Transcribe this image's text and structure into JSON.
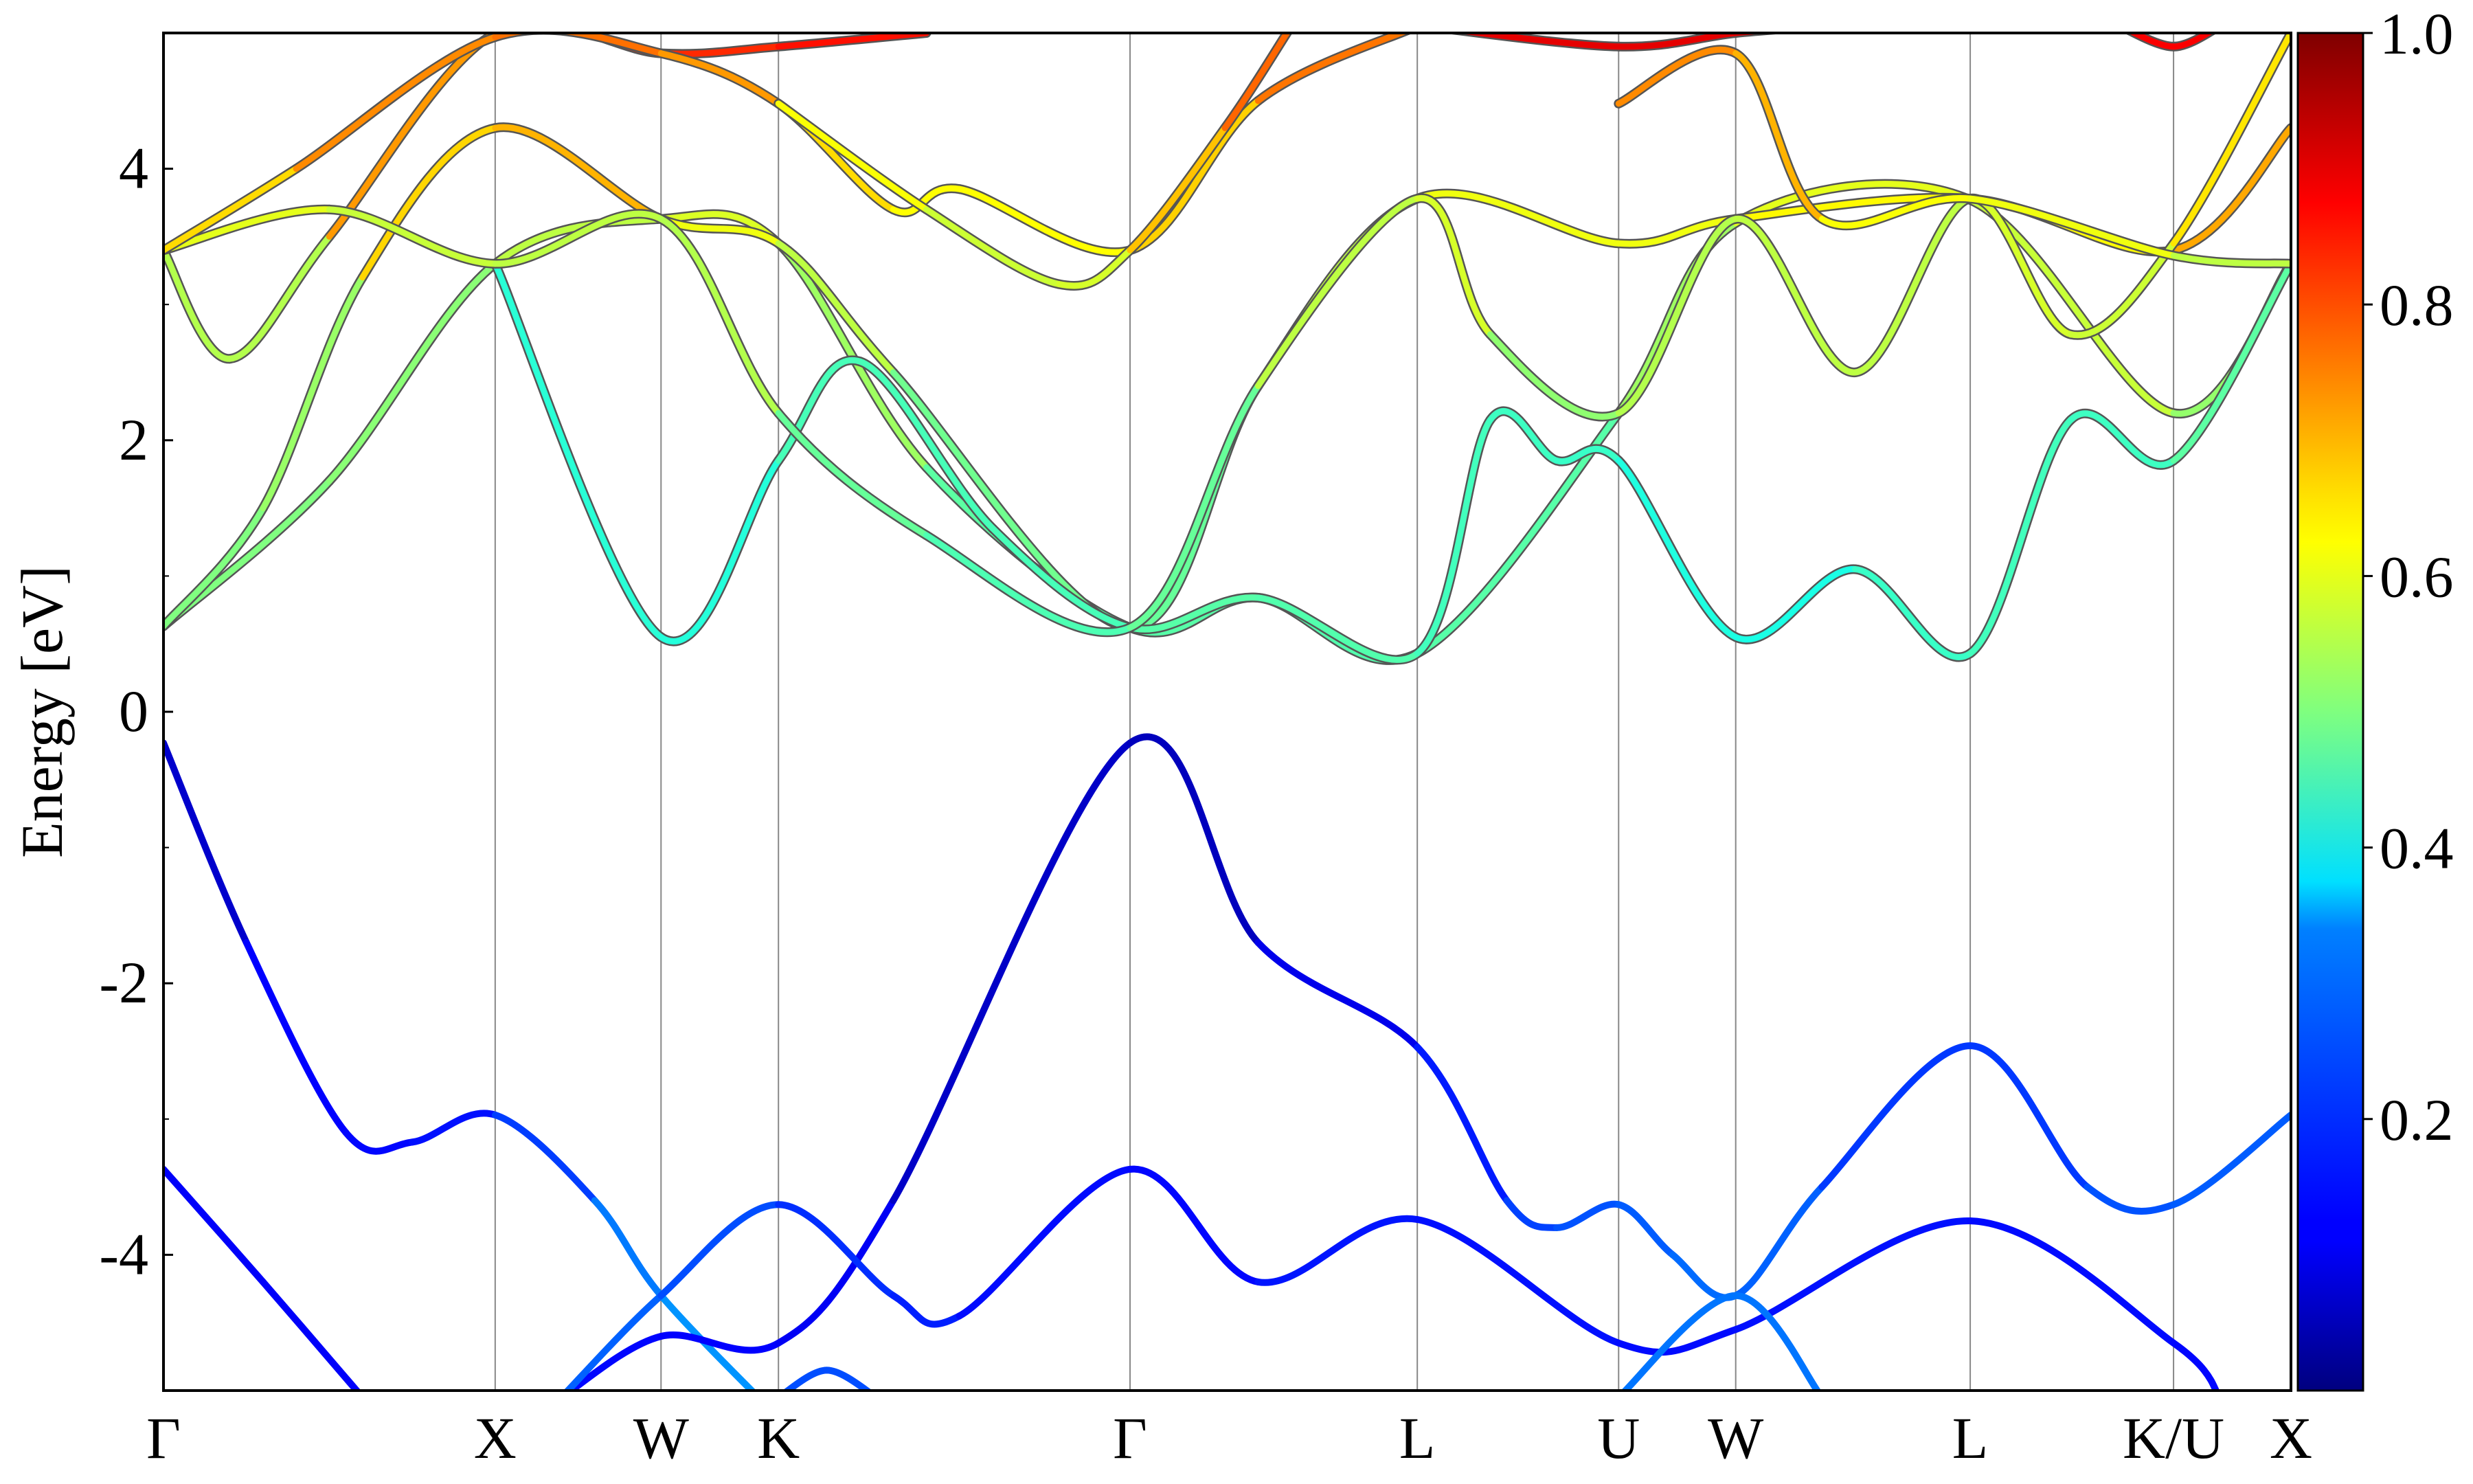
{
  "chart_data": {
    "type": "line",
    "title": "",
    "xlabel": "",
    "ylabel": "Energy [eV]",
    "ylim": [
      -5,
      5
    ],
    "yticks": [
      4,
      2,
      0,
      -2,
      -4
    ],
    "ytick_labels": [
      "4",
      "2",
      "0",
      "-2",
      "-4"
    ],
    "grid": "vertical lines at high-symmetry points",
    "legend": "none",
    "high_symmetry_points": [
      {
        "label": "Γ",
        "k": 0.0
      },
      {
        "label": "X",
        "k": 1.0
      },
      {
        "label": "W",
        "k": 1.5
      },
      {
        "label": "K",
        "k": 1.854
      },
      {
        "label": "Γ",
        "k": 2.914
      },
      {
        "label": "L",
        "k": 3.78
      },
      {
        "label": "U",
        "k": 4.387
      },
      {
        "label": "W",
        "k": 4.74
      },
      {
        "label": "L",
        "k": 5.447
      },
      {
        "label": "K/U",
        "k": 6.06
      },
      {
        "label": "X",
        "k": 6.414
      }
    ],
    "colorbar": {
      "colormap": "jet",
      "range": [
        0,
        1
      ],
      "ticks": [
        1.0,
        0.8,
        0.6,
        0.4,
        0.2
      ],
      "tick_labels": [
        "1.0",
        "0.8",
        "0.6",
        "0.4",
        "0.2"
      ]
    },
    "series": [
      {
        "points": [
          [
            0,
            -0.23
          ],
          [
            0.25,
            -1.7
          ],
          [
            0.55,
            -3.1
          ],
          [
            0.75,
            -3.17
          ],
          [
            1.0,
            -2.97
          ],
          [
            1.3,
            -3.6
          ],
          [
            1.5,
            -4.3
          ],
          [
            1.854,
            -5.2
          ]
        ],
        "weight": [
          0.03,
          0.12,
          0.13,
          0.13,
          0.15,
          0.22,
          0.27,
          0.27
        ]
      },
      {
        "points": [
          [
            0,
            -3.37
          ],
          [
            0.3,
            -4.2
          ],
          [
            0.6,
            -5.05
          ]
        ],
        "weight": [
          0.12,
          0.12,
          0.12
        ]
      },
      {
        "points": [
          [
            1.2,
            -5.05
          ],
          [
            1.5,
            -4.6
          ],
          [
            1.854,
            -4.65
          ],
          [
            2.2,
            -3.6
          ],
          [
            2.914,
            -0.23
          ],
          [
            3.3,
            -1.7
          ],
          [
            3.78,
            -2.47
          ],
          [
            4.05,
            -3.6
          ],
          [
            4.2,
            -3.8
          ],
          [
            4.387,
            -3.63
          ],
          [
            4.55,
            -4.0
          ],
          [
            4.74,
            -4.3
          ],
          [
            5.0,
            -3.5
          ],
          [
            5.447,
            -2.46
          ],
          [
            5.8,
            -3.5
          ],
          [
            6.06,
            -3.63
          ],
          [
            6.414,
            -2.97
          ]
        ],
        "weight": [
          0.13,
          0.13,
          0.12,
          0.11,
          0.03,
          0.09,
          0.12,
          0.18,
          0.2,
          0.21,
          0.22,
          0.24,
          0.2,
          0.16,
          0.2,
          0.21,
          0.22
        ]
      },
      {
        "points": [
          [
            1.2,
            -5.05
          ],
          [
            1.5,
            -4.3
          ],
          [
            1.854,
            -3.63
          ],
          [
            2.2,
            -4.3
          ],
          [
            2.4,
            -4.45
          ],
          [
            2.914,
            -3.37
          ],
          [
            3.3,
            -4.2
          ],
          [
            3.78,
            -3.74
          ],
          [
            4.387,
            -4.65
          ],
          [
            4.74,
            -4.55
          ],
          [
            5.447,
            -3.75
          ],
          [
            6.06,
            -4.65
          ],
          [
            6.2,
            -5.05
          ]
        ],
        "weight": [
          0.22,
          0.22,
          0.18,
          0.16,
          0.15,
          0.12,
          0.14,
          0.15,
          0.13,
          0.14,
          0.14,
          0.13,
          0.13
        ]
      },
      {
        "points": [
          [
            1.65,
            -5.05
          ],
          [
            1.854,
            -5.2
          ]
        ],
        "weight": [
          0.25,
          0.25
        ]
      },
      {
        "points": [
          [
            1.854,
            -5.05
          ],
          [
            2.0,
            -4.85
          ],
          [
            2.15,
            -5.05
          ]
        ],
        "weight": [
          0.2,
          0.2,
          0.2
        ]
      },
      {
        "points": [
          [
            4.387,
            -5.05
          ],
          [
            4.74,
            -4.3
          ],
          [
            5.0,
            -5.05
          ]
        ],
        "weight": [
          0.24,
          0.24,
          0.24
        ]
      },
      {
        "points": [
          [
            0,
            0.63
          ],
          [
            0.5,
            1.7
          ],
          [
            1.0,
            3.3
          ],
          [
            1.5,
            3.63
          ],
          [
            1.854,
            3.45
          ],
          [
            2.3,
            1.8
          ],
          [
            2.914,
            0.62
          ],
          [
            3.3,
            0.84
          ],
          [
            3.78,
            0.43
          ],
          [
            4.387,
            2.2
          ],
          [
            4.74,
            3.6
          ],
          [
            5.447,
            3.77
          ],
          [
            6.06,
            2.2
          ],
          [
            6.414,
            3.3
          ]
        ],
        "weight": [
          0.5,
          0.5,
          0.52,
          0.6,
          0.58,
          0.48,
          0.45,
          0.47,
          0.44,
          0.48,
          0.58,
          0.62,
          0.52,
          0.52
        ]
      },
      {
        "points": [
          [
            0,
            0.63
          ],
          [
            0.3,
            1.5
          ],
          [
            0.6,
            3.2
          ],
          [
            1.0,
            4.3
          ],
          [
            1.5,
            3.63
          ],
          [
            1.854,
            3.45
          ],
          [
            2.2,
            2.5
          ],
          [
            2.914,
            0.62
          ],
          [
            3.3,
            2.4
          ],
          [
            3.78,
            3.78
          ],
          [
            4.387,
            3.45
          ],
          [
            4.74,
            3.63
          ],
          [
            5.447,
            3.78
          ],
          [
            6.06,
            3.4
          ],
          [
            6.414,
            4.3
          ]
        ],
        "weight": [
          0.5,
          0.5,
          0.55,
          0.78,
          0.62,
          0.6,
          0.52,
          0.45,
          0.5,
          0.62,
          0.6,
          0.62,
          0.64,
          0.62,
          0.8
        ]
      },
      {
        "points": [
          [
            1.0,
            3.3
          ],
          [
            1.5,
            0.55
          ],
          [
            1.854,
            1.85
          ],
          [
            2.1,
            2.58
          ],
          [
            2.5,
            1.35
          ],
          [
            2.914,
            0.62
          ],
          [
            3.3,
            0.84
          ],
          [
            3.78,
            0.43
          ],
          [
            4.0,
            2.15
          ],
          [
            4.2,
            1.85
          ],
          [
            4.387,
            1.85
          ],
          [
            4.74,
            0.55
          ],
          [
            5.1,
            1.05
          ],
          [
            5.447,
            0.43
          ],
          [
            5.75,
            2.15
          ],
          [
            6.06,
            1.85
          ],
          [
            6.414,
            3.3
          ]
        ],
        "weight": [
          0.45,
          0.38,
          0.44,
          0.45,
          0.44,
          0.45,
          0.47,
          0.44,
          0.44,
          0.43,
          0.43,
          0.38,
          0.42,
          0.44,
          0.44,
          0.43,
          0.5
        ]
      },
      {
        "points": [
          [
            0,
            3.4
          ],
          [
            0.2,
            2.6
          ],
          [
            0.5,
            3.5
          ],
          [
            1.0,
            5.0
          ],
          [
            1.5,
            4.85
          ],
          [
            1.854,
            4.9
          ],
          [
            2.3,
            5.0
          ]
        ],
        "weight": [
          0.6,
          0.5,
          0.6,
          0.85,
          0.82,
          0.85,
          0.87
        ]
      },
      {
        "points": [
          [
            0,
            3.4
          ],
          [
            0.5,
            3.7
          ],
          [
            1.0,
            3.3
          ],
          [
            1.5,
            3.63
          ],
          [
            1.854,
            2.2
          ],
          [
            2.3,
            1.3
          ],
          [
            2.914,
            0.62
          ],
          [
            3.3,
            2.4
          ],
          [
            3.78,
            3.78
          ],
          [
            4.0,
            2.78
          ],
          [
            4.387,
            2.2
          ],
          [
            4.74,
            3.63
          ],
          [
            5.1,
            2.5
          ],
          [
            5.447,
            3.78
          ],
          [
            5.75,
            2.78
          ],
          [
            6.06,
            3.45
          ],
          [
            6.414,
            5.0
          ]
        ],
        "weight": [
          0.58,
          0.62,
          0.52,
          0.6,
          0.5,
          0.45,
          0.45,
          0.5,
          0.62,
          0.55,
          0.48,
          0.62,
          0.5,
          0.62,
          0.55,
          0.6,
          0.7
        ]
      },
      {
        "points": [
          [
            0,
            3.4
          ],
          [
            0.4,
            4.0
          ],
          [
            1.0,
            4.97
          ],
          [
            1.5,
            4.85
          ],
          [
            1.854,
            4.48
          ],
          [
            2.2,
            3.7
          ],
          [
            2.4,
            3.85
          ],
          [
            2.914,
            3.4
          ],
          [
            3.3,
            4.5
          ],
          [
            3.78,
            5.05
          ]
        ],
        "weight": [
          0.62,
          0.7,
          0.78,
          0.75,
          0.7,
          0.62,
          0.63,
          0.62,
          0.72,
          0.8
        ]
      },
      {
        "points": [
          [
            1.854,
            4.48
          ],
          [
            2.3,
            3.7
          ],
          [
            2.7,
            3.15
          ],
          [
            2.914,
            3.4
          ],
          [
            3.2,
            4.3
          ],
          [
            3.4,
            5.05
          ]
        ],
        "weight": [
          0.64,
          0.6,
          0.55,
          0.62,
          0.75,
          0.8
        ]
      },
      {
        "points": [
          [
            4.387,
            4.48
          ],
          [
            4.74,
            4.85
          ],
          [
            5.0,
            3.63
          ],
          [
            5.447,
            3.78
          ],
          [
            6.06,
            3.36
          ],
          [
            6.414,
            3.3
          ]
        ],
        "weight": [
          0.7,
          0.78,
          0.62,
          0.62,
          0.6,
          0.52
        ]
      },
      {
        "points": [
          [
            3.8,
            5.05
          ],
          [
            4.387,
            4.9
          ],
          [
            4.74,
            5.0
          ],
          [
            5.0,
            5.05
          ]
        ],
        "weight": [
          0.9,
          0.9,
          0.9,
          0.9
        ]
      },
      {
        "points": [
          [
            5.9,
            5.05
          ],
          [
            6.06,
            4.9
          ],
          [
            6.2,
            5.05
          ]
        ],
        "weight": [
          0.88,
          0.88,
          0.88
        ]
      }
    ]
  }
}
